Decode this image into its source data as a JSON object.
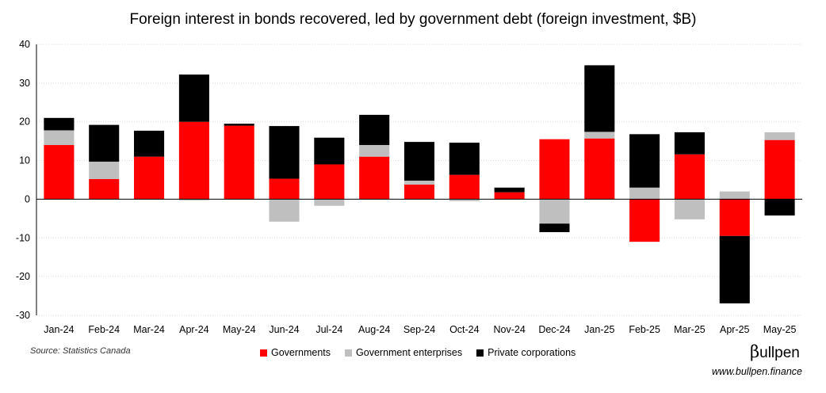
{
  "chart_data": {
    "type": "bar",
    "stacked": true,
    "title": "Foreign interest in bonds recovered, led by government debt (foreign investment, $B)",
    "xlabel": "",
    "ylabel": "",
    "ylim": [
      -30,
      40
    ],
    "yticks": [
      "40",
      "30",
      "20",
      "10",
      "0",
      "-10",
      "-20",
      "-30"
    ],
    "grid": true,
    "legend_position": "bottom",
    "categories": [
      "Jan-24",
      "Feb-24",
      "Mar-24",
      "Apr-24",
      "May-24",
      "Jun-24",
      "Jul-24",
      "Aug-24",
      "Sep-24",
      "Oct-24",
      "Nov-24",
      "Dec-24",
      "Jan-25",
      "Feb-25",
      "Mar-25",
      "Apr-25",
      "May-25"
    ],
    "series": [
      {
        "name": "Governments",
        "color": "#ff0000",
        "values": [
          14,
          5.2,
          11,
          20,
          19,
          5.3,
          9,
          11,
          3.8,
          6.3,
          1.8,
          15.5,
          15.7,
          -11,
          11.6,
          -9.5,
          15.3
        ]
      },
      {
        "name": "Government enterprises",
        "color": "#bfbfbf",
        "values": [
          3.8,
          4.5,
          0,
          -0.3,
          0,
          -5.8,
          -1.7,
          3,
          1,
          -0.5,
          0,
          -6.3,
          1.7,
          3,
          -5.2,
          2,
          2
        ]
      },
      {
        "name": "Private corporations",
        "color": "#000000",
        "values": [
          3.2,
          9.5,
          6.7,
          12.2,
          0.5,
          13.6,
          6.9,
          7.8,
          10,
          8.3,
          1.2,
          -2.2,
          17.2,
          13.8,
          5.7,
          -17.4,
          -4.2
        ]
      }
    ]
  },
  "footer": {
    "source": "Source: Statistics Canada",
    "logo_mark": "β",
    "logo_text": "ullpen",
    "website": "www.bullpen.finance"
  }
}
